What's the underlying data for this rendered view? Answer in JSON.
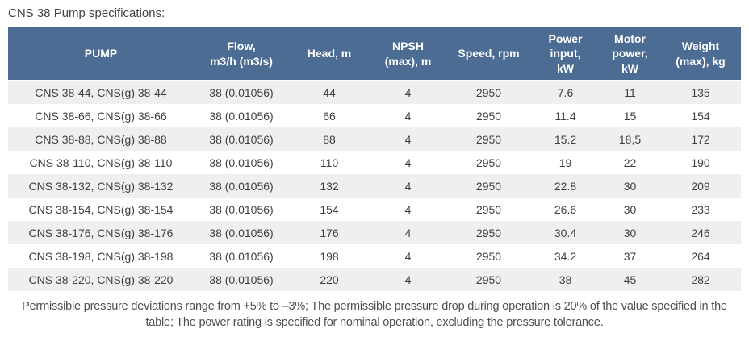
{
  "page_title": "CNS 38 Pump specifications:",
  "colors": {
    "header_bg": "#4c6c94",
    "header_text": "#ffffff",
    "row_alt_bg": "#efefef",
    "row_bg": "#ffffff",
    "body_text": "#3f3f3f",
    "note_text": "#4f4f4f"
  },
  "table": {
    "columns": [
      {
        "key": "pump",
        "label": "PUMP"
      },
      {
        "key": "flow",
        "label": "Flow,\nm3/h (m3/s)"
      },
      {
        "key": "head",
        "label": "Head, m"
      },
      {
        "key": "npsh",
        "label": "NPSH\n(max), m"
      },
      {
        "key": "speed",
        "label": "Speed, rpm"
      },
      {
        "key": "power-input",
        "label": "Power\ninput,\nkW"
      },
      {
        "key": "motor-power",
        "label": "Motor\npower,\nkW"
      },
      {
        "key": "weight",
        "label": "Weight\n(max), kg"
      }
    ],
    "rows": [
      {
        "cells": [
          "CNS 38-44, CNS(g) 38-44",
          "38 (0.01056)",
          "44",
          "4",
          "2950",
          "7.6",
          "11",
          "135"
        ]
      },
      {
        "cells": [
          "CNS 38-66, CNS(g) 38-66",
          "38 (0.01056)",
          "66",
          "4",
          "2950",
          "11.4",
          "15",
          "154"
        ]
      },
      {
        "cells": [
          "CNS 38-88, CNS(g) 38-88",
          "38 (0.01056)",
          "88",
          "4",
          "2950",
          "15.2",
          "18,5",
          "172"
        ]
      },
      {
        "cells": [
          "CNS 38-110, CNS(g) 38-110",
          "38 (0.01056)",
          "110",
          "4",
          "2950",
          "19",
          "22",
          "190"
        ]
      },
      {
        "cells": [
          "CNS 38-132, CNS(g) 38-132",
          "38 (0.01056)",
          "132",
          "4",
          "2950",
          "22.8",
          "30",
          "209"
        ]
      },
      {
        "cells": [
          "CNS 38-154, CNS(g) 38-154",
          "38 (0.01056)",
          "154",
          "4",
          "2950",
          "26.6",
          "30",
          "233"
        ]
      },
      {
        "cells": [
          "CNS 38-176, CNS(g) 38-176",
          "38 (0.01056)",
          "176",
          "4",
          "2950",
          "30.4",
          "30",
          "246"
        ]
      },
      {
        "cells": [
          "CNS 38-198, CNS(g) 38-198",
          "38 (0.01056)",
          "198",
          "4",
          "2950",
          "34.2",
          "37",
          "264"
        ]
      },
      {
        "cells": [
          "CNS 38-220, CNS(g) 38-220",
          "38 (0.01056)",
          "220",
          "4",
          "2950",
          "38",
          "45",
          "282"
        ]
      }
    ]
  },
  "footnote": "Permissible pressure deviations range from +5% to –3%; The permissible pressure drop during operation is 20% of the value specified in the table; The power rating is specified for nominal operation, excluding the pressure tolerance."
}
